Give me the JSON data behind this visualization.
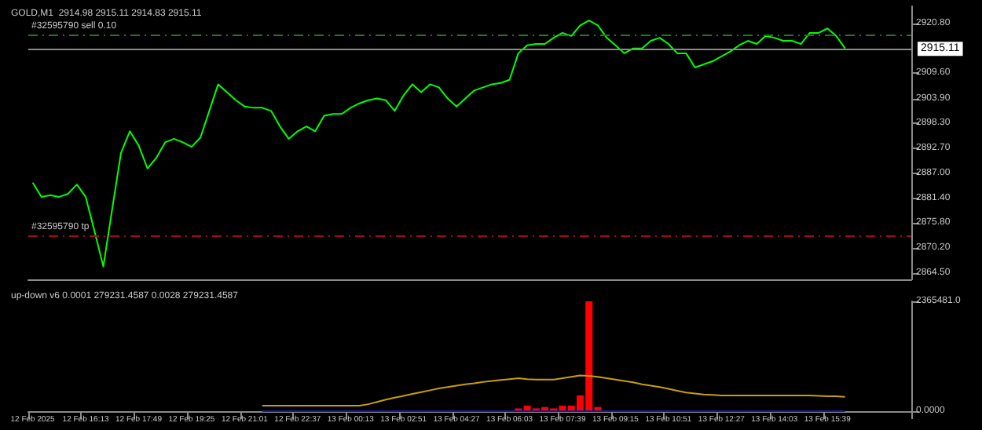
{
  "chart_data": [
    {
      "type": "line",
      "title": "GOLD,M1  2914.98 2915.11 2914.83 2915.11",
      "tick_labels": "y",
      "grid": false,
      "marker": "none",
      "categories": [
        null,
        null,
        null,
        null,
        null,
        null,
        null,
        null,
        null,
        null,
        null,
        null,
        null,
        null,
        null,
        null,
        null,
        null,
        null,
        null,
        null,
        null,
        null,
        null,
        null,
        null,
        null,
        null,
        null,
        null,
        null,
        null,
        null,
        null,
        null,
        null,
        null,
        null,
        null,
        null,
        null,
        null,
        null,
        null,
        null,
        null,
        null,
        null,
        null,
        null,
        null,
        null,
        null,
        null,
        null,
        null,
        null,
        null,
        null,
        null,
        null,
        null,
        null,
        null,
        null,
        null,
        null,
        null,
        null,
        null,
        null,
        null,
        null,
        null,
        null,
        null,
        null,
        null,
        null,
        null,
        null,
        null,
        null,
        null,
        null,
        null,
        null,
        null,
        null,
        null,
        null,
        null,
        null,
        null,
        null,
        null,
        null,
        null,
        null,
        null
      ],
      "series": [
        {
          "color": "#00ff00",
          "values": [
            2884.9,
            2881.7,
            2882.1,
            2881.7,
            2882.4,
            2884.5,
            2881.7,
            2874.0,
            2866.0,
            2878.9,
            2891.6,
            2896.5,
            2893.3,
            2888.1,
            2890.5,
            2894.0,
            2894.8,
            2894.0,
            2893.0,
            2895.1,
            2901.1,
            2907.1,
            2905.3,
            2903.5,
            2902.1,
            2901.8,
            2901.8,
            2901.1,
            2897.6,
            2894.8,
            2896.5,
            2897.6,
            2896.5,
            2900.0,
            2900.4,
            2900.4,
            2901.8,
            2902.8,
            2903.5,
            2903.9,
            2903.5,
            2901.1,
            2904.6,
            2907.1,
            2905.3,
            2907.1,
            2906.4,
            2903.9,
            2902.1,
            2903.9,
            2905.7,
            2906.4,
            2907.1,
            2907.4,
            2908.1,
            2914.1,
            2915.9,
            2916.2,
            2916.2,
            2917.6,
            2918.7,
            2918.0,
            2920.4,
            2921.5,
            2920.4,
            2917.6,
            2915.9,
            2914.1,
            2915.2,
            2915.2,
            2916.9,
            2917.6,
            2916.2,
            2914.1,
            2914.1,
            2910.9,
            2911.6,
            2912.3,
            2913.4,
            2914.5,
            2915.9,
            2916.9,
            2916.2,
            2918.0,
            2917.6,
            2916.9,
            2916.9,
            2916.2,
            2918.7,
            2918.7,
            2919.7,
            2918.0,
            2915.2,
            null,
            null,
            null,
            null,
            null,
            null,
            null
          ]
        }
      ],
      "ylim": [
        2863.1,
        2924.7
      ],
      "yticks": [
        {
          "value": 2920.8,
          "label": "2920.80"
        },
        {
          "value": 2909.6,
          "label": "2909.60"
        },
        {
          "value": 2903.9,
          "label": "2903.90"
        },
        {
          "value": 2898.3,
          "label": "2898.30"
        },
        {
          "value": 2892.7,
          "label": "2892.70"
        },
        {
          "value": 2887,
          "label": "2887.00"
        },
        {
          "value": 2881.4,
          "label": "2881.40"
        },
        {
          "value": 2875.8,
          "label": "2875.80"
        },
        {
          "value": 2870.2,
          "label": "2870.20"
        },
        {
          "value": 2864.5,
          "label": "2864.50"
        }
      ],
      "ref_lines": [
        {
          "axis": "y",
          "value": 2918.3,
          "label": "#32595790 sell 0.10",
          "color": "#1f7a1f",
          "line_style": "dashed"
        },
        {
          "axis": "y",
          "value": 2873.0,
          "label": "#32595790 tp",
          "color": "#a01010",
          "line_style": "dashed"
        },
        {
          "axis": "y",
          "value": 2915.11,
          "label": "2915.11",
          "color": "#8a8a8a",
          "line_style": "solid"
        }
      ]
    },
    {
      "type": "bar",
      "title": "up-down v6 0.0001 279231.4587 0.0028 279231.4587",
      "grid": false,
      "marker": "none",
      "categories": [
        "12 Feb 2025",
        null,
        null,
        null,
        null,
        null,
        "12 Feb 16:13",
        null,
        null,
        null,
        null,
        null,
        "12 Feb 17:49",
        null,
        null,
        null,
        null,
        null,
        "12 Feb 19:25",
        null,
        null,
        null,
        null,
        null,
        "12 Feb 21:01",
        null,
        null,
        null,
        null,
        null,
        "12 Feb 22:37",
        null,
        null,
        null,
        null,
        null,
        "13 Feb 00:13",
        null,
        null,
        null,
        null,
        null,
        "13 Feb 02:51",
        null,
        null,
        null,
        null,
        null,
        "13 Feb 04:27",
        null,
        null,
        null,
        null,
        null,
        "13 Feb 06:03",
        null,
        null,
        null,
        null,
        null,
        "13 Feb 07:39",
        null,
        null,
        null,
        null,
        null,
        "13 Feb 09:15",
        null,
        null,
        null,
        null,
        null,
        "13 Feb 10:51",
        null,
        null,
        null,
        null,
        null,
        "13 Feb 12:27",
        null,
        null,
        null,
        null,
        null,
        "13 Feb 14:03",
        null,
        null,
        null,
        null,
        null,
        "13 Feb 15:39",
        null,
        null,
        null,
        null,
        null,
        null,
        null,
        null,
        null
      ],
      "series": [
        {
          "color": "#ff0000",
          "values": [
            null,
            null,
            null,
            null,
            null,
            null,
            null,
            null,
            null,
            null,
            null,
            null,
            null,
            null,
            null,
            null,
            null,
            null,
            null,
            null,
            null,
            null,
            null,
            null,
            null,
            null,
            null,
            null,
            null,
            null,
            null,
            null,
            null,
            null,
            null,
            null,
            null,
            null,
            null,
            null,
            null,
            null,
            null,
            null,
            null,
            null,
            null,
            null,
            null,
            null,
            null,
            null,
            null,
            null,
            null,
            60000,
            120000,
            60000,
            90000,
            60000,
            120000,
            120000,
            340000,
            2365481,
            90000,
            null,
            null,
            null,
            null,
            null,
            null,
            null,
            null,
            null,
            null,
            null,
            null,
            null,
            null,
            null,
            null,
            null,
            null,
            null,
            null,
            null,
            null,
            null,
            null,
            null,
            null,
            null,
            null,
            null,
            null,
            null,
            null,
            null,
            null,
            null
          ]
        },
        {
          "type": "line",
          "color": "#c8a000",
          "values": [
            null,
            null,
            null,
            null,
            null,
            null,
            null,
            null,
            null,
            null,
            null,
            null,
            null,
            null,
            null,
            null,
            null,
            null,
            null,
            null,
            null,
            null,
            null,
            null,
            null,
            null,
            120000,
            120000,
            120000,
            120000,
            120000,
            120000,
            120000,
            120000,
            120000,
            120000,
            120000,
            120000,
            150000,
            200000,
            250000,
            290000,
            330000,
            370000,
            410000,
            450000,
            490000,
            520000,
            550000,
            580000,
            600000,
            630000,
            650000,
            670000,
            690000,
            710000,
            690000,
            680000,
            680000,
            680000,
            710000,
            740000,
            770000,
            760000,
            740000,
            710000,
            680000,
            650000,
            620000,
            580000,
            550000,
            520000,
            480000,
            440000,
            400000,
            380000,
            360000,
            350000,
            340000,
            340000,
            340000,
            340000,
            340000,
            340000,
            340000,
            340000,
            340000,
            340000,
            340000,
            330000,
            320000,
            320000,
            310000,
            null,
            null,
            null,
            null,
            null,
            null,
            null
          ]
        },
        {
          "type": "line",
          "color": "#1a1aa0",
          "values": [
            null,
            null,
            null,
            null,
            null,
            null,
            null,
            null,
            null,
            null,
            null,
            null,
            null,
            null,
            null,
            null,
            null,
            null,
            null,
            null,
            null,
            null,
            null,
            null,
            null,
            null,
            0,
            0,
            0,
            0,
            0,
            0,
            0,
            0,
            0,
            0,
            0,
            0,
            0,
            0,
            0,
            0,
            0,
            0,
            0,
            0,
            0,
            0,
            0,
            0,
            0,
            0,
            0,
            0,
            0,
            0,
            0,
            0,
            0,
            0,
            0,
            0,
            0,
            0,
            0,
            0,
            0,
            0,
            0,
            0,
            0,
            0,
            0,
            0,
            0,
            0,
            0,
            0,
            0,
            0,
            0,
            0,
            0,
            0,
            0,
            0,
            0,
            0,
            0,
            0,
            0,
            0,
            0,
            null,
            null,
            null,
            null,
            null,
            null,
            null
          ]
        }
      ],
      "ylim": [
        0,
        2365481
      ],
      "yticks": [
        {
          "value": 2365481,
          "label": "2365481.0"
        },
        {
          "value": 0,
          "label": "0.0000"
        }
      ]
    }
  ]
}
